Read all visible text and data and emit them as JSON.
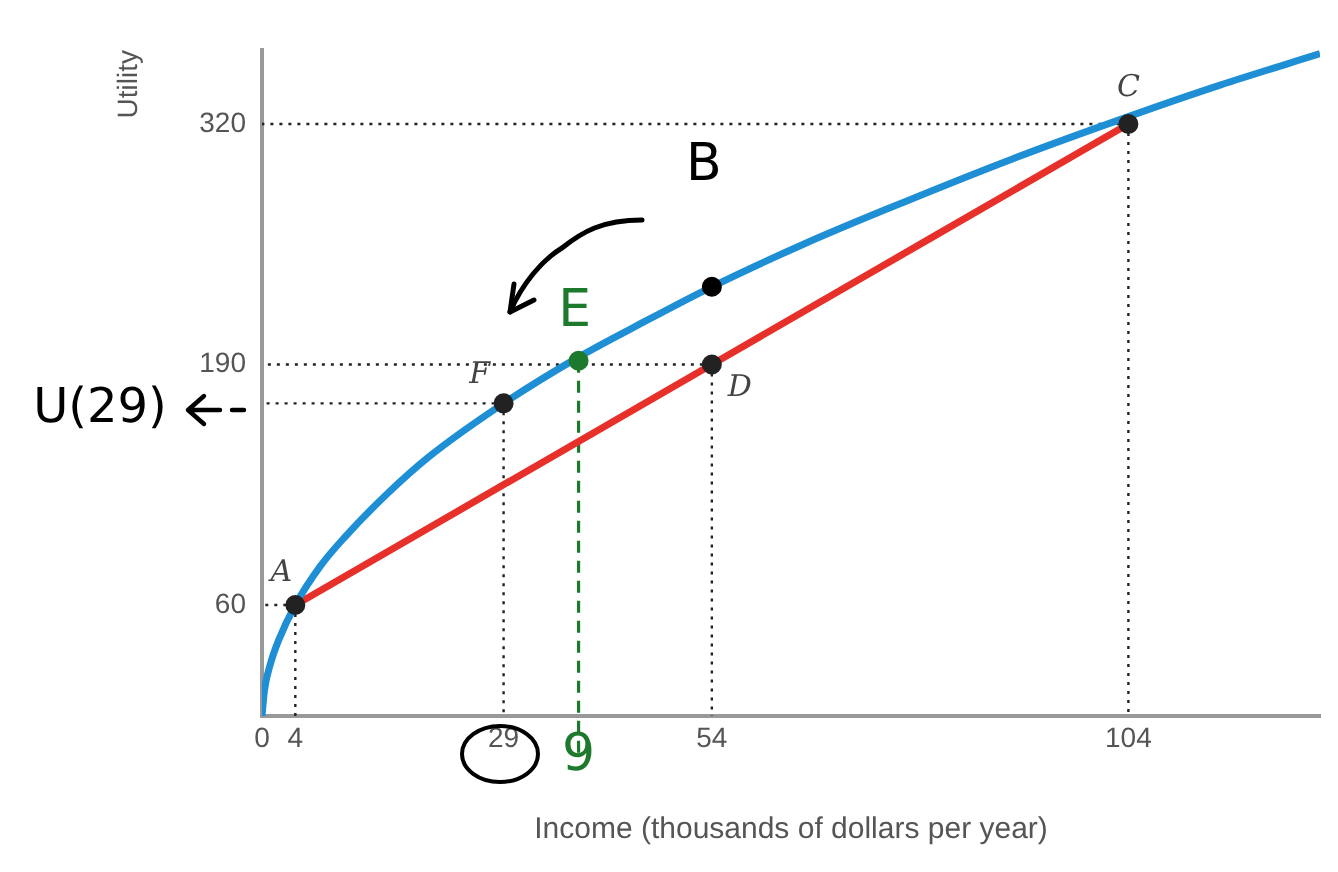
{
  "chart_data": {
    "type": "line",
    "xlabel": "Income (thousands of dollars per year)",
    "ylabel": "Utility",
    "xlim": [
      0,
      127
    ],
    "ylim": [
      0,
      360
    ],
    "xticks": [
      0,
      4,
      29,
      54,
      104
    ],
    "yticks": [
      60,
      190,
      320
    ],
    "legend": false,
    "line_style": "solid",
    "series": [
      {
        "marker": "none",
        "color": "#1e8fd5",
        "x": [
          0,
          0.3,
          1,
          2,
          4,
          7,
          10,
          15,
          20,
          29,
          38,
          45,
          54,
          65,
          75,
          90,
          104,
          115,
          127
        ],
        "values": [
          0,
          14,
          28,
          41,
          60,
          81,
          97,
          120,
          140,
          169,
          194,
          211,
          232,
          255,
          274,
          301,
          324,
          341,
          358
        ]
      },
      {
        "marker": "none",
        "color": "#e8302a",
        "x": [
          4,
          54,
          104
        ],
        "values": [
          60,
          190,
          320
        ]
      },
      {
        "type": "scatter",
        "marker": "circle",
        "color": "#222222",
        "line_style": "dotted",
        "x": [
          4,
          29,
          54,
          104
        ],
        "values": [
          60,
          169,
          190,
          320
        ]
      },
      {
        "type": "scatter",
        "marker": "circle",
        "color": "#1d7a2c",
        "line_style": "dashed",
        "x": [
          38
        ],
        "values": [
          192
        ]
      },
      {
        "type": "scatter",
        "marker": "circle",
        "color": "#000000",
        "x": [
          54
        ],
        "values": [
          232
        ]
      }
    ],
    "annotations": [
      {
        "text": "A",
        "x": 4,
        "y": 60
      },
      {
        "text": "F",
        "x": 29,
        "y": 169
      },
      {
        "text": "D",
        "x": 54,
        "y": 190
      },
      {
        "text": "C",
        "x": 104,
        "y": 320
      },
      {
        "text": "E",
        "x": 38,
        "y": 192
      },
      {
        "text": "B",
        "x": 54,
        "y": 232
      },
      "U(29)",
      {
        "text": "9",
        "x": 38
      }
    ]
  }
}
